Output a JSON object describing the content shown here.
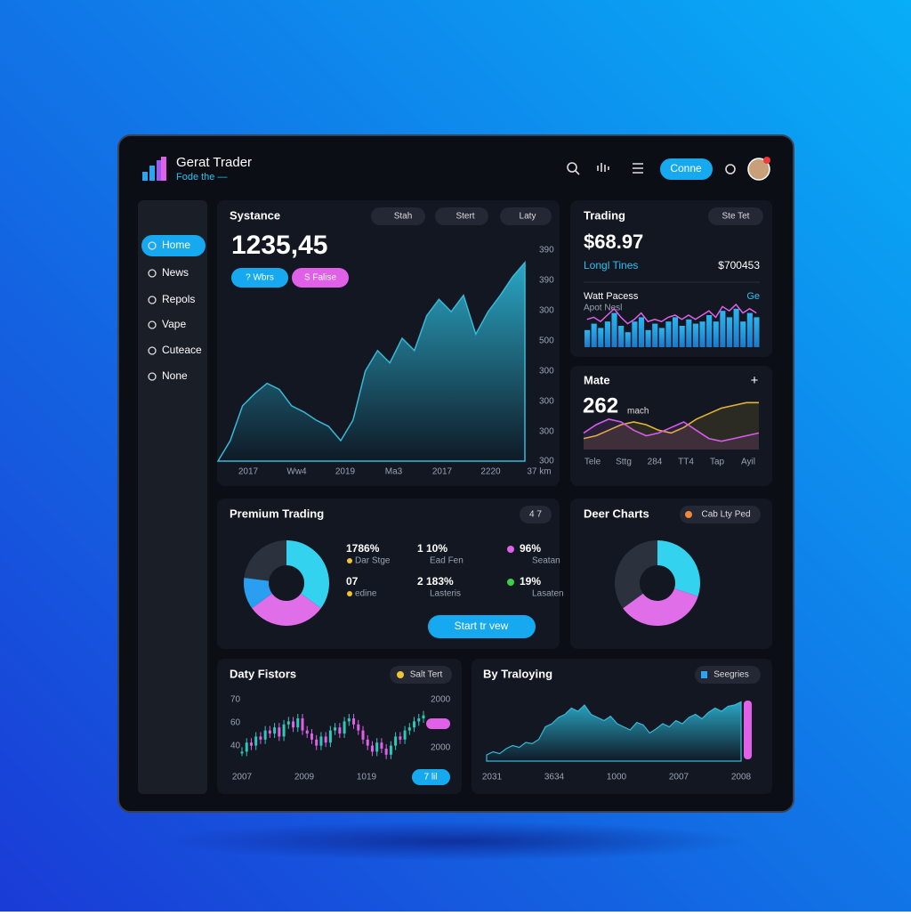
{
  "header": {
    "brand": "Gerat Trader",
    "tagline": "Fode the —",
    "button": "Conne"
  },
  "sidebar": {
    "items": [
      "Home",
      "News",
      "Repols",
      "Vape",
      "Cuteace",
      "None"
    ]
  },
  "main_chart": {
    "title": "Systance",
    "tabs": [
      "Stah",
      "Stert",
      "Laty"
    ],
    "value": "1235,45",
    "badges": [
      "? Wbrs",
      "S Falise"
    ],
    "ylabels": [
      "390",
      "390",
      "300",
      "500",
      "300",
      "300",
      "300",
      "300"
    ],
    "xlabels": [
      "2017",
      "Ww4",
      "2019",
      "Ma3",
      "2017",
      "2220",
      "37 km"
    ],
    "ylim": [
      0,
      100
    ],
    "values": [
      0,
      10,
      27,
      33,
      38,
      35,
      27,
      24,
      20,
      17,
      10,
      20,
      44,
      54,
      48,
      60,
      54,
      71,
      79,
      73,
      81,
      62,
      73,
      81,
      90,
      97
    ]
  },
  "trading": {
    "title": "Trading",
    "tab": "Ste Tet",
    "value": "$68.97",
    "subtitle": "Longl Tines",
    "amount": "$700453",
    "section": "Watt Pacess",
    "section_note": "Apot Nesl",
    "link": "Ge",
    "ylim": [
      0,
      100
    ],
    "bars": [
      40,
      55,
      45,
      60,
      80,
      50,
      35,
      60,
      70,
      40,
      55,
      45,
      60,
      70,
      50,
      65,
      55,
      60,
      75,
      60,
      85,
      70,
      90,
      60,
      80,
      70
    ],
    "line": [
      65,
      70,
      60,
      75,
      90,
      70,
      55,
      65,
      80,
      60,
      65,
      60,
      70,
      75,
      65,
      75,
      65,
      75,
      85,
      70,
      95,
      85,
      100,
      80,
      90,
      80
    ]
  },
  "mate": {
    "title": "Mate",
    "action": "+",
    "value": "262",
    "unit": "mach",
    "xlabels": [
      "Tele",
      "Sttg",
      "284",
      "TT4",
      "Tap",
      "Ayil"
    ],
    "ylim": [
      0,
      100
    ],
    "series": [
      {
        "color": "#e0b534",
        "values": [
          20,
          25,
          35,
          45,
          50,
          45,
          35,
          30,
          40,
          55,
          65,
          75,
          80,
          85,
          85
        ]
      },
      {
        "color": "#d45ce8",
        "values": [
          30,
          45,
          55,
          50,
          35,
          25,
          30,
          40,
          50,
          35,
          20,
          15,
          20,
          25,
          30
        ]
      }
    ]
  },
  "premium": {
    "title": "Premium Trading",
    "tab": "4 7",
    "button": "Start tr vew",
    "donut": [
      {
        "color": "#33d3f0",
        "value": 35
      },
      {
        "color": "#e06ee8",
        "value": 30
      },
      {
        "color": "#2a9ef0",
        "value": 12
      },
      {
        "color": "#2b313d",
        "value": 23
      }
    ],
    "stats": [
      {
        "value": "1786%",
        "label": "Dar Stge"
      },
      {
        "value": "1 10%",
        "label": "Ead Fen"
      },
      {
        "value": "96%",
        "label": "Seatan"
      },
      {
        "value": "07",
        "label": "edine"
      },
      {
        "value": "2 183%",
        "label": "Lasteris"
      },
      {
        "value": "19%",
        "label": "Lasaten"
      }
    ]
  },
  "deer": {
    "title": "Deer Charts",
    "tab": "Cab Lty Ped",
    "donut": [
      {
        "color": "#33d3f0",
        "value": 30
      },
      {
        "color": "#e06ee8",
        "value": 35
      },
      {
        "color": "#2b313d",
        "value": 35
      }
    ]
  },
  "daty": {
    "title": "Daty Fistors",
    "tab": "Salt Tert",
    "ylabels": [
      "70",
      "60",
      "40"
    ],
    "rlabels": [
      "2000",
      "2000"
    ],
    "badge": "7 lil",
    "xlabels": [
      "2007",
      "2009",
      "1019"
    ],
    "ylim": [
      0,
      100
    ],
    "values": [
      20,
      35,
      30,
      45,
      40,
      55,
      50,
      60,
      45,
      65,
      70,
      60,
      75,
      55,
      50,
      40,
      30,
      45,
      35,
      55,
      60,
      50,
      70,
      75,
      65,
      55,
      40,
      30,
      20,
      35,
      25,
      15,
      30,
      45,
      40,
      55,
      60,
      70,
      75,
      80
    ]
  },
  "traloying": {
    "title": "By Traloying",
    "tab": "Seegries",
    "xlabels": [
      "2031",
      "3634",
      "1000",
      "2007",
      "2008"
    ],
    "ylim": [
      0,
      100
    ],
    "values": [
      10,
      15,
      12,
      20,
      25,
      22,
      30,
      28,
      35,
      55,
      60,
      70,
      75,
      85,
      80,
      90,
      75,
      70,
      65,
      72,
      60,
      55,
      50,
      62,
      58,
      45,
      52,
      60,
      55,
      65,
      60,
      70,
      75,
      68,
      78,
      85,
      80,
      88,
      90,
      95
    ]
  }
}
